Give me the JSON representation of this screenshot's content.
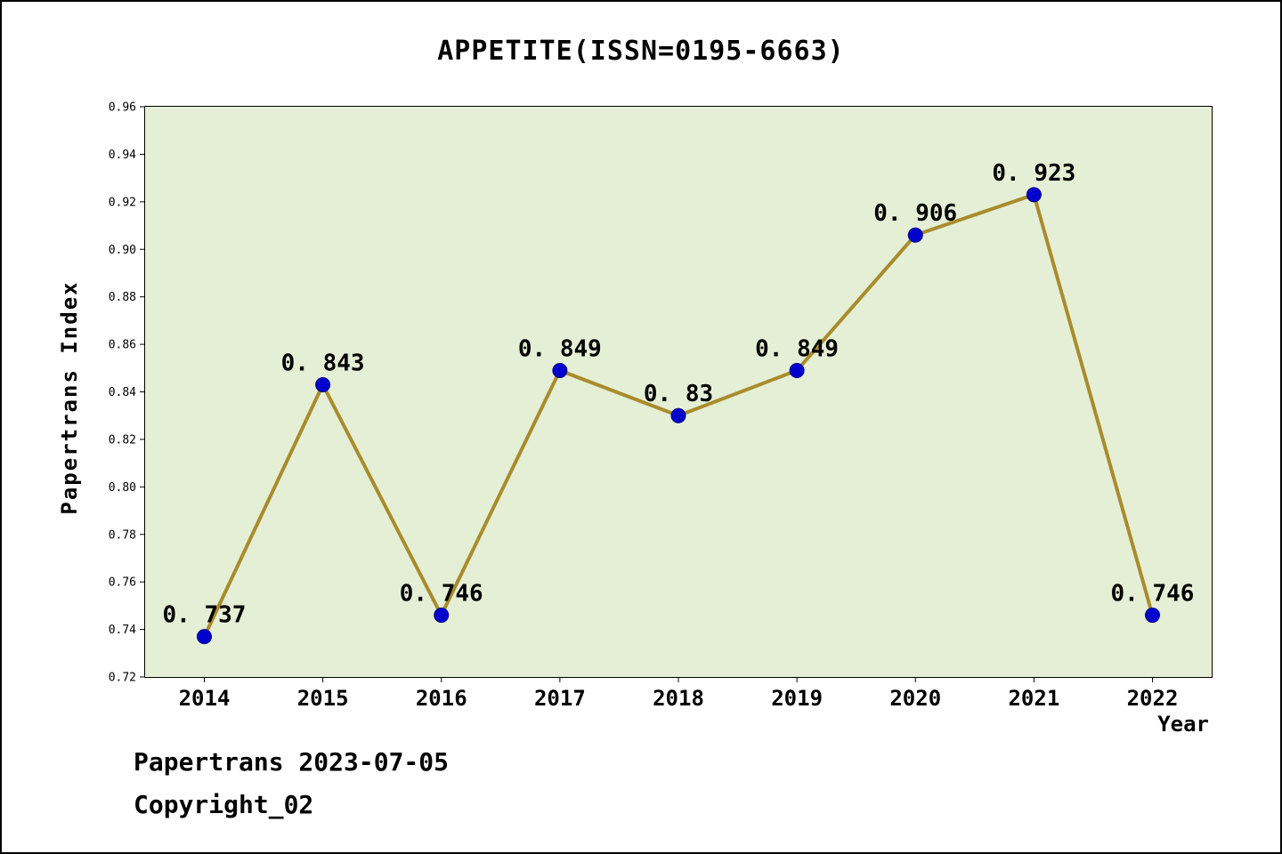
{
  "footer": {
    "line1": "Papertrans 2023-07-05",
    "line2": "Copyright_02"
  },
  "chart_data": {
    "type": "line",
    "title": "APPETITE(ISSN=0195-6663)",
    "xlabel": "Year",
    "ylabel": "Papertrans Index",
    "categories": [
      "2014",
      "2015",
      "2016",
      "2017",
      "2018",
      "2019",
      "2020",
      "2021",
      "2022"
    ],
    "values": [
      0.737,
      0.843,
      0.746,
      0.849,
      0.83,
      0.849,
      0.906,
      0.923,
      0.746
    ],
    "point_labels": [
      "0. 737",
      "0. 843",
      "0. 746",
      "0. 849",
      "0. 83",
      "0. 849",
      "0. 906",
      "0. 923",
      "0. 746"
    ],
    "ylim": [
      0.72,
      0.96
    ],
    "yticks": [
      "0.72",
      "0.74",
      "0.76",
      "0.78",
      "0.80",
      "0.82",
      "0.84",
      "0.86",
      "0.88",
      "0.90",
      "0.92",
      "0.94",
      "0.96"
    ],
    "grid": false,
    "legend": null,
    "colors": {
      "line": "#a88c2c",
      "marker": "#0000cd",
      "marker_edge": "#00008b",
      "plot_bg": "#e5efd6",
      "text": "#000000"
    }
  }
}
